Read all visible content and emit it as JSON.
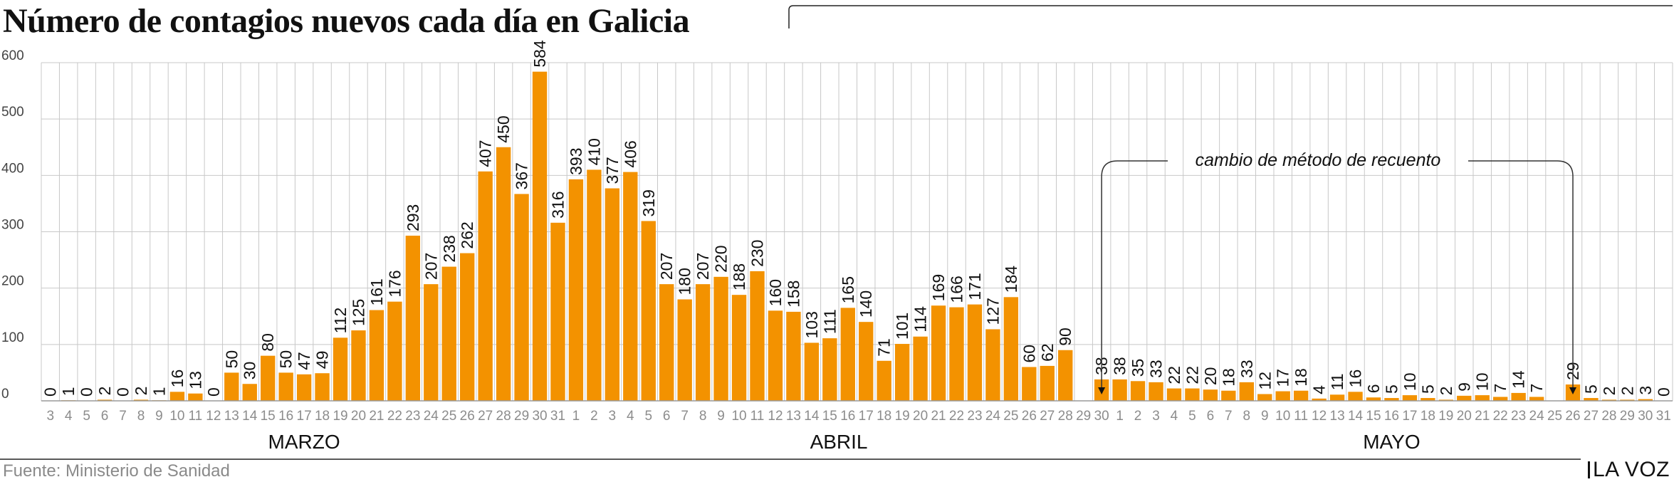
{
  "title": "Número de contagios nuevos cada día en Galicia",
  "source": "Fuente: Ministerio de Sanidad",
  "brand": "LA VOZ",
  "annotation": "cambio de método de recuento",
  "colors": {
    "bar": "#f39200",
    "grid": "#c8c8c8",
    "axis_text": "#8c8c8c",
    "label": "#111111"
  },
  "chart_data": {
    "type": "bar",
    "x": [
      "3",
      "4",
      "5",
      "6",
      "7",
      "8",
      "9",
      "10",
      "11",
      "12",
      "13",
      "14",
      "15",
      "16",
      "17",
      "18",
      "19",
      "20",
      "21",
      "22",
      "23",
      "24",
      "25",
      "26",
      "27",
      "28",
      "29",
      "30",
      "31",
      "1",
      "2",
      "3",
      "4",
      "5",
      "6",
      "7",
      "8",
      "9",
      "10",
      "11",
      "12",
      "13",
      "14",
      "15",
      "16",
      "17",
      "18",
      "19",
      "20",
      "21",
      "22",
      "23",
      "24",
      "25",
      "26",
      "27",
      "28",
      "29",
      "30",
      "1",
      "2",
      "3",
      "4",
      "5",
      "6",
      "7",
      "8",
      "9",
      "10",
      "11",
      "12",
      "13",
      "14",
      "15",
      "16",
      "17",
      "18",
      "19",
      "20",
      "21",
      "22",
      "23",
      "24",
      "25",
      "26",
      "27",
      "28",
      "29",
      "30",
      "31"
    ],
    "values": [
      0,
      1,
      0,
      2,
      0,
      2,
      1,
      16,
      13,
      0,
      50,
      30,
      80,
      50,
      47,
      49,
      112,
      125,
      161,
      176,
      293,
      207,
      238,
      262,
      407,
      450,
      367,
      584,
      316,
      393,
      410,
      377,
      406,
      319,
      207,
      180,
      207,
      220,
      188,
      230,
      160,
      158,
      103,
      111,
      165,
      140,
      71,
      101,
      114,
      169,
      166,
      171,
      127,
      184,
      60,
      62,
      90,
      null,
      38,
      38,
      35,
      33,
      22,
      22,
      20,
      18,
      33,
      12,
      17,
      18,
      4,
      11,
      16,
      6,
      5,
      10,
      5,
      2,
      9,
      10,
      7,
      14,
      7,
      null,
      29,
      5,
      2,
      2,
      3,
      0
    ],
    "months": [
      {
        "name": "MARZO",
        "start_index": 0,
        "end_index": 28
      },
      {
        "name": "ABRIL",
        "start_index": 29,
        "end_index": 58
      },
      {
        "name": "MAYO",
        "start_index": 59,
        "end_index": 89
      }
    ],
    "ylim": [
      0,
      600
    ],
    "yticks": [
      0,
      100,
      200,
      300,
      400,
      500,
      600
    ],
    "grid": true,
    "annotation_range": {
      "start_index": 58,
      "end_index": 84
    }
  }
}
